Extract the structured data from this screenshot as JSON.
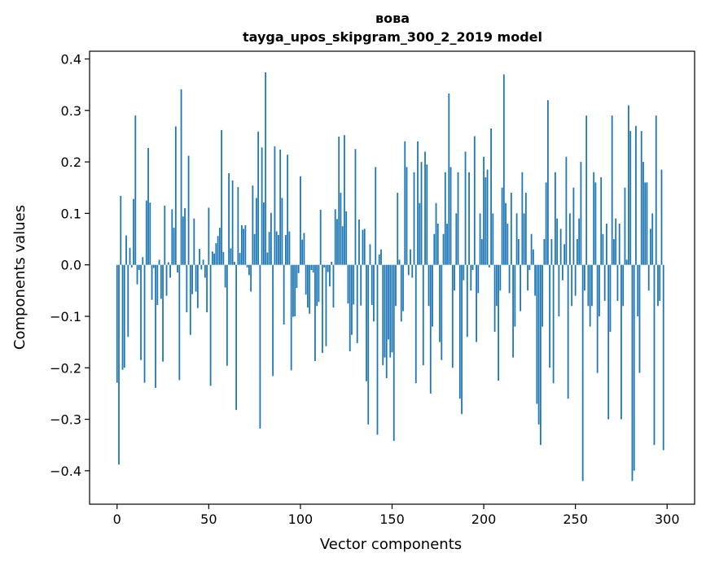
{
  "chart_data": {
    "type": "bar",
    "title": "вова",
    "subtitle": "tayga_upos_skipgram_300_2_2019 model",
    "xlabel": "Vector components",
    "ylabel": "Components values",
    "xlim": [
      -15,
      315
    ],
    "ylim": [
      -0.465,
      0.415
    ],
    "xticks": [
      0,
      50,
      100,
      150,
      200,
      250,
      300
    ],
    "xtick_labels": [
      "0",
      "50",
      "100",
      "150",
      "200",
      "250",
      "300"
    ],
    "yticks": [
      -0.4,
      -0.3,
      -0.2,
      -0.1,
      0.0,
      0.1,
      0.2,
      0.3,
      0.4
    ],
    "ytick_labels": [
      "−0.4",
      "−0.3",
      "−0.2",
      "−0.1",
      "0.0",
      "0.1",
      "0.2",
      "0.3",
      "0.4"
    ],
    "bar_color": "#1f77b4",
    "values": [
      -0.229,
      -0.388,
      0.134,
      -0.204,
      -0.2,
      0.057,
      -0.14,
      0.033,
      -0.005,
      0.128,
      0.29,
      -0.038,
      -0.01,
      -0.185,
      0.015,
      -0.229,
      0.125,
      0.227,
      0.121,
      -0.068,
      -0.006,
      -0.239,
      -0.078,
      0.01,
      -0.066,
      -0.188,
      0.115,
      -0.06,
      0.005,
      -0.025,
      0.108,
      0.072,
      0.269,
      -0.015,
      -0.224,
      0.341,
      0.094,
      0.11,
      -0.092,
      0.212,
      -0.136,
      -0.057,
      0.09,
      -0.052,
      -0.084,
      0.031,
      -0.009,
      0.01,
      -0.025,
      -0.092,
      0.111,
      -0.235,
      0.026,
      0.022,
      0.042,
      0.056,
      0.072,
      0.262,
      0.025,
      -0.044,
      -0.196,
      0.178,
      0.032,
      0.164,
      0.006,
      -0.282,
      0.151,
      0.023,
      0.077,
      0.07,
      0.077,
      -0.005,
      -0.02,
      -0.052,
      0.154,
      0.06,
      0.13,
      0.259,
      -0.318,
      0.228,
      0.121,
      0.374,
      0.024,
      0.064,
      0.101,
      -0.216,
      0.23,
      0.065,
      0.058,
      0.224,
      0.13,
      -0.116,
      0.058,
      0.214,
      0.065,
      -0.205,
      -0.101,
      -0.1,
      -0.045,
      -0.016,
      0.172,
      0.049,
      0.062,
      -0.058,
      -0.083,
      -0.095,
      -0.01,
      -0.015,
      -0.187,
      -0.08,
      -0.072,
      0.107,
      -0.171,
      -0.005,
      -0.158,
      -0.014,
      -0.042,
      0.006,
      -0.083,
      0.108,
      0.089,
      0.249,
      0.14,
      0.075,
      0.252,
      0.104,
      -0.075,
      -0.168,
      -0.136,
      -0.077,
      0.225,
      -0.152,
      0.088,
      -0.079,
      0.068,
      0.07,
      -0.226,
      -0.31,
      0.04,
      -0.078,
      -0.11,
      0.19,
      -0.33,
      0.02,
      0.03,
      -0.195,
      -0.18,
      -0.22,
      -0.145,
      -0.18,
      -0.17,
      -0.342,
      -0.08,
      0.14,
      0.01,
      -0.11,
      -0.09,
      0.24,
      0.19,
      -0.02,
      0.03,
      -0.025,
      0.18,
      -0.23,
      0.24,
      0.12,
      0.2,
      -0.195,
      0.22,
      0.195,
      -0.08,
      -0.25,
      -0.12,
      0.06,
      0.12,
      0.08,
      -0.15,
      -0.185,
      0.06,
      0.18,
      0.08,
      0.333,
      0.19,
      -0.2,
      -0.05,
      0.1,
      0.18,
      -0.26,
      -0.29,
      -0.03,
      0.22,
      -0.14,
      0.18,
      -0.05,
      -0.01,
      0.25,
      -0.15,
      -0.055,
      0.1,
      0.05,
      0.21,
      0.17,
      0.185,
      -0.005,
      0.265,
      0.1,
      -0.13,
      -0.08,
      -0.225,
      -0.05,
      0.15,
      0.37,
      0.12,
      0.08,
      -0.055,
      0.14,
      -0.18,
      -0.12,
      0.1,
      0.05,
      -0.09,
      0.18,
      0.1,
      0.14,
      -0.05,
      -0.01,
      0.06,
      0.03,
      -0.06,
      -0.27,
      -0.31,
      -0.35,
      -0.12,
      0.05,
      0.16,
      0.32,
      -0.2,
      0.05,
      -0.23,
      0.18,
      0.09,
      -0.1,
      0.07,
      -0.03,
      0.04,
      0.21,
      -0.26,
      0.1,
      -0.08,
      0.15,
      -0.06,
      0.05,
      0.09,
      0.2,
      -0.42,
      -0.05,
      0.29,
      -0.08,
      -0.12,
      -0.08,
      0.18,
      0.16,
      -0.21,
      -0.1,
      0.17,
      0.06,
      -0.07,
      0.08,
      -0.3,
      -0.13,
      0.29,
      0.05,
      0.09,
      -0.07,
      0.08,
      -0.3,
      -0.08,
      0.15,
      0.01,
      0.31,
      0.26,
      -0.42,
      -0.4,
      0.27,
      -0.1,
      -0.21,
      0.26,
      0.2,
      0.16,
      0.16,
      -0.05,
      0.07,
      0.1,
      -0.35,
      0.29,
      -0.08,
      -0.07,
      0.185,
      -0.36
    ]
  }
}
